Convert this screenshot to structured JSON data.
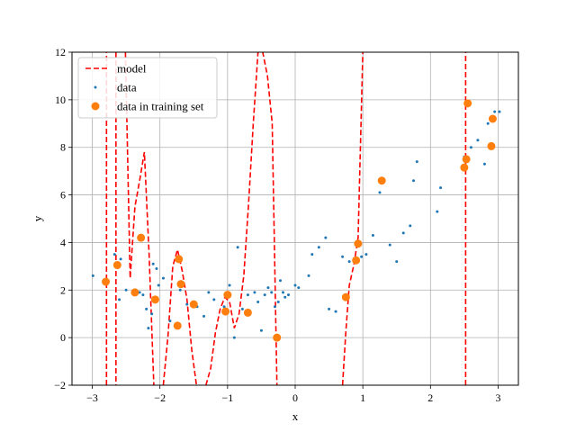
{
  "chart_data": {
    "type": "scatter",
    "xlabel": "x",
    "ylabel": "y",
    "xlim": [
      -3.3,
      3.3
    ],
    "ylim": [
      -2,
      12
    ],
    "xticks": [
      -3,
      -2,
      -1,
      0,
      1,
      2,
      3
    ],
    "yticks": [
      -2,
      0,
      2,
      4,
      6,
      8,
      10,
      12
    ],
    "grid": true,
    "legend": "upper-left",
    "series": [
      {
        "name": "model",
        "kind": "line",
        "style": "dashed",
        "color": "#ff0000",
        "x": [
          -2.93,
          -2.86,
          -2.79,
          -2.79,
          -2.72,
          -2.65,
          -2.65,
          -2.58,
          -2.51,
          -2.44,
          -2.37,
          -2.3,
          -2.23,
          -2.16,
          -2.09,
          -2.02,
          -1.95,
          -1.88,
          -1.81,
          -1.74,
          -1.67,
          -1.6,
          -1.53,
          -1.46,
          -1.39,
          -1.32,
          -1.25,
          -1.18,
          -1.11,
          -1.04,
          -0.97,
          -0.9,
          -0.83,
          -0.76,
          -0.69,
          -0.62,
          -0.55,
          -0.48,
          -0.41,
          -0.34,
          -0.27,
          -0.2,
          -0.2,
          0.0,
          0.2,
          0.4,
          0.55,
          0.7,
          0.75,
          0.8,
          0.87,
          0.93,
          1.0,
          1.0,
          1.05,
          1.15,
          1.22,
          1.22,
          1.25,
          1.3,
          1.5,
          1.7,
          1.9,
          2.1,
          2.3,
          2.45,
          2.52,
          2.52,
          2.6,
          2.8,
          3.0
        ],
        "y": [
          null,
          null,
          -2,
          12,
          null,
          12,
          -2,
          null,
          12,
          2.5,
          5.5,
          6.6,
          7.8,
          3.5,
          -2,
          null,
          -2,
          0.1,
          3.0,
          3.7,
          2.8,
          1.6,
          -0.5,
          -2,
          null,
          -2,
          -1.3,
          0.2,
          1.2,
          1.7,
          1.5,
          0.4,
          1.0,
          2.6,
          5.6,
          9.0,
          12,
          12,
          11.0,
          9.0,
          -2,
          null,
          null,
          null,
          null,
          null,
          null,
          -2,
          0.3,
          2.2,
          3.1,
          4.2,
          12,
          null,
          null,
          null,
          12,
          null,
          -2,
          null,
          null,
          null,
          null,
          null,
          null,
          null,
          -2,
          12,
          null,
          null,
          null
        ]
      },
      {
        "name": "data",
        "kind": "scatter",
        "color": "#1f77b4",
        "size": "small",
        "x": [
          -2.99,
          -2.67,
          -2.6,
          -2.58,
          -2.5,
          -2.3,
          -2.25,
          -2.2,
          -2.17,
          -2.12,
          -2.1,
          -2.05,
          -2.02,
          -1.95,
          -1.85,
          -1.75,
          -1.7,
          -1.6,
          -1.5,
          -1.45,
          -1.35,
          -1.28,
          -1.2,
          -1.05,
          -0.97,
          -0.9,
          -0.85,
          -0.78,
          -0.7,
          -0.6,
          -0.55,
          -0.5,
          -0.45,
          -0.4,
          -0.35,
          -0.3,
          -0.25,
          -0.22,
          -0.18,
          -0.15,
          -0.1,
          0.0,
          0.05,
          0.2,
          0.25,
          0.35,
          0.45,
          0.5,
          0.6,
          0.7,
          0.8,
          0.9,
          0.98,
          1.05,
          1.15,
          1.25,
          1.4,
          1.5,
          1.6,
          1.7,
          1.75,
          1.8,
          2.1,
          2.15,
          2.5,
          2.6,
          2.7,
          2.8,
          2.85,
          2.9,
          2.95,
          3.02
        ],
        "y": [
          2.6,
          3.5,
          1.6,
          3.3,
          2.0,
          1.9,
          1.8,
          1.2,
          0.4,
          1.0,
          3.1,
          2.9,
          2.2,
          2.5,
          0.7,
          0.6,
          2.0,
          1.4,
          1.5,
          1.3,
          0.9,
          1.9,
          1.6,
          1.3,
          2.2,
          0.0,
          3.8,
          1.2,
          1.8,
          1.9,
          1.5,
          0.3,
          1.8,
          2.1,
          1.9,
          1.3,
          1.5,
          2.4,
          1.9,
          1.7,
          1.8,
          2.2,
          2.1,
          2.6,
          3.5,
          3.8,
          4.2,
          1.2,
          1.1,
          3.4,
          3.2,
          3.3,
          3.4,
          3.5,
          4.3,
          6.1,
          3.9,
          3.2,
          4.4,
          4.7,
          6.6,
          7.4,
          5.3,
          6.3,
          7.6,
          8.0,
          8.3,
          7.3,
          9.0,
          8.0,
          9.5,
          9.5
        ]
      },
      {
        "name": "data in training set",
        "kind": "scatter",
        "color": "#ff7f0e",
        "size": "large",
        "x": [
          -2.8,
          -2.63,
          -2.37,
          -2.28,
          -2.07,
          -1.74,
          -1.72,
          -1.69,
          -1.5,
          -1.03,
          -1.0,
          -0.7,
          -0.27,
          0.75,
          0.9,
          0.93,
          1.28,
          2.5,
          2.53,
          2.55,
          2.9,
          2.92
        ],
        "y": [
          2.35,
          3.05,
          1.9,
          4.2,
          1.6,
          0.5,
          3.3,
          2.25,
          1.4,
          1.1,
          1.8,
          1.05,
          0.0,
          1.7,
          3.25,
          3.95,
          6.6,
          7.15,
          7.5,
          9.85,
          8.05,
          9.2
        ]
      }
    ]
  }
}
